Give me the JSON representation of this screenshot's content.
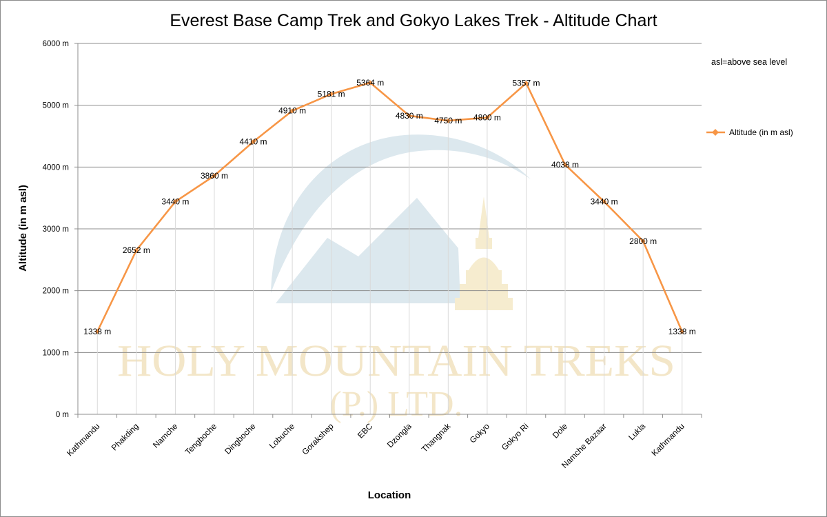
{
  "chart_data": {
    "type": "line",
    "title": "Everest Base Camp Trek and Gokyo Lakes Trek - Altitude Chart",
    "xlabel": "Location",
    "ylabel": "Altitude (in m asl)",
    "ylim": [
      0,
      6000
    ],
    "y_ticks": [
      0,
      1000,
      2000,
      3000,
      4000,
      5000,
      6000
    ],
    "y_tick_labels": [
      "0 m",
      "1000 m",
      "2000 m",
      "3000 m",
      "4000 m",
      "5000 m",
      "6000 m"
    ],
    "grid": "horizontal major gridlines",
    "legend_position": "right",
    "categories": [
      "Kathmandu",
      "Phakding",
      "Namche",
      "Tengboche",
      "Dingboche",
      "Lobuche",
      "Gorakshep",
      "EBC",
      "Dzongla",
      "Thangnak",
      "Gokyo",
      "Gokyo Ri",
      "Dole",
      "Namche Bazaar",
      "Lukla",
      "Kathmandu"
    ],
    "series": [
      {
        "name": "Altitude (in  m asl)",
        "color": "#f79646",
        "values": [
          1338,
          2652,
          3440,
          3860,
          4410,
          4910,
          5181,
          5364,
          4830,
          4750,
          4800,
          5357,
          4038,
          3440,
          2800,
          1338
        ],
        "data_labels": [
          "1338 m",
          "2652 m",
          "3440 m",
          "3860 m",
          "4410 m",
          "4910 m",
          "5181 m",
          "5364 m",
          "4830 m",
          "4750 m",
          "4800 m",
          "5357 m",
          "4038 m",
          "3440 m",
          "2800 m",
          "1338 m"
        ]
      }
    ],
    "note": "asl=above sea level"
  },
  "watermark": {
    "line1": "HOLY MOUNTAIN TREKS",
    "line2": "(P.) LTD.",
    "blue": "#dce8ee",
    "gold": "#f6eccf"
  }
}
